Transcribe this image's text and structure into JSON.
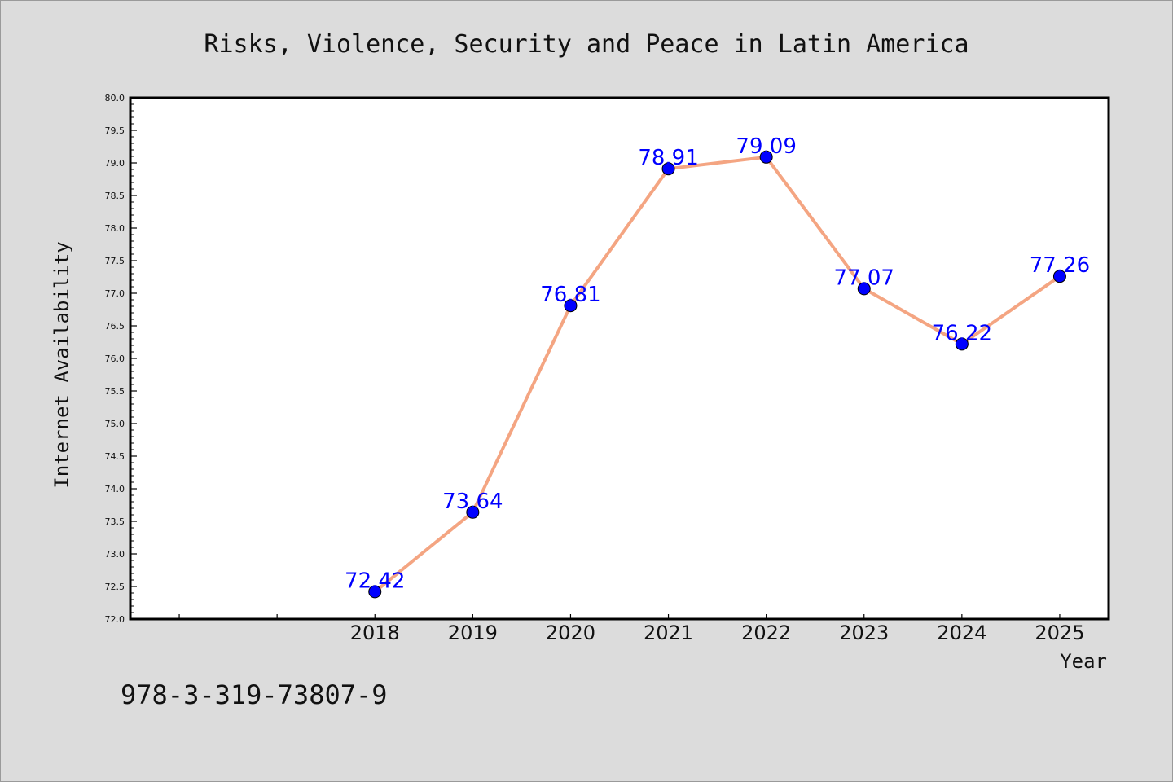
{
  "chart_data": {
    "type": "line",
    "title": "Risks, Violence, Security and Peace in Latin America",
    "xlabel": "Year",
    "ylabel": "Internet Availability",
    "categories": [
      "2018",
      "2019",
      "2020",
      "2021",
      "2022",
      "2023",
      "2024",
      "2025"
    ],
    "series": [
      {
        "values": [
          72.42,
          73.64,
          76.81,
          78.91,
          79.09,
          77.07,
          76.22,
          77.26
        ]
      }
    ],
    "data_labels": [
      "72.42",
      "73.64",
      "76.81",
      "78.91",
      "79.09",
      "77.07",
      "76.22",
      "77.26"
    ],
    "ylim": [
      72.0,
      80.0
    ],
    "yticks": [
      "72.0",
      "72.5",
      "73.0",
      "73.5",
      "74.0",
      "74.5",
      "75.0",
      "75.5",
      "76.0",
      "76.5",
      "77.0",
      "77.5",
      "78.0",
      "78.5",
      "79.0",
      "79.5",
      "80.0"
    ],
    "grid": false,
    "legend": "none",
    "colors": {
      "line": "#f4a582",
      "marker": "#0000ff",
      "data_label": "#0000ff",
      "background": "#dcdcdc",
      "plot_background": "#ffffff"
    }
  },
  "footer": {
    "isbn": "978-3-319-73807-9"
  }
}
